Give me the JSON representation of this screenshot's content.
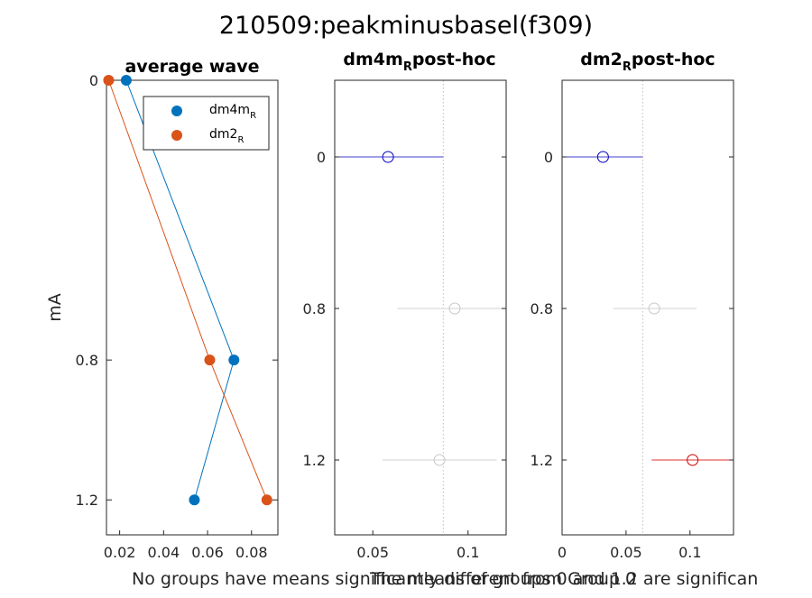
{
  "figure": {
    "title": "210509:peakminusbasel(f309)",
    "footer_left": "No groups have means significantly different from Group 0",
    "footer_right": "The means of groups 0 and 1.2 are significan"
  },
  "chart_data": [
    {
      "type": "line",
      "title": "average wave",
      "ylabel": "mA",
      "xlabel": "",
      "orientation": "horizontal-values",
      "y_categories": [
        0,
        0.8,
        1.2
      ],
      "y_tick_labels": [
        "0",
        "0.8",
        "1.2"
      ],
      "x_tick_values": [
        0.02,
        0.04,
        0.06,
        0.08
      ],
      "x_tick_labels": [
        "0.02",
        "0.04",
        "0.06",
        "0.08"
      ],
      "xlim": [
        0.014,
        0.092
      ],
      "ylim": [
        0,
        1.3
      ],
      "grid": false,
      "legend_placement": "top-right",
      "series": [
        {
          "name": "dm4m",
          "subscript": "R",
          "color": "#0072BD",
          "x": [
            0.023,
            0.072,
            0.054
          ],
          "y": [
            0,
            0.8,
            1.2
          ]
        },
        {
          "name": "dm2",
          "subscript": "R",
          "color": "#D95319",
          "x": [
            0.015,
            0.061,
            0.087
          ],
          "y": [
            0,
            0.8,
            1.2
          ]
        }
      ]
    },
    {
      "type": "scatter",
      "title_main": "dm4m",
      "title_sub": "R",
      "title_suffix": "post-hoc",
      "y_tick_labels": [
        "0",
        "0.8",
        "1.2"
      ],
      "x_tick_values": [
        0.05,
        0.1
      ],
      "x_tick_labels": [
        "0.05",
        "0.1"
      ],
      "xlim": [
        0.03,
        0.12
      ],
      "ylim": [
        0,
        3
      ],
      "reference_line": 0.087,
      "points": [
        {
          "group": "0",
          "mean": 0.058,
          "lo": 0.03,
          "hi": 0.087,
          "color": "#0000C0",
          "line_color": "#4040D0"
        },
        {
          "group": "0.8",
          "mean": 0.093,
          "lo": 0.063,
          "hi": 0.12,
          "color": "#C8C8C8",
          "line_color": "#D0D0D0"
        },
        {
          "group": "1.2",
          "mean": 0.085,
          "lo": 0.055,
          "hi": 0.115,
          "color": "#C8C8C8",
          "line_color": "#D0D0D0"
        }
      ]
    },
    {
      "type": "scatter",
      "title_main": "dm2",
      "title_sub": "R",
      "title_suffix": "post-hoc",
      "y_tick_labels": [
        "0",
        "0.8",
        "1.2"
      ],
      "x_tick_values": [
        0,
        0.05,
        0.1
      ],
      "x_tick_labels": [
        "0",
        "0.05",
        "0.1"
      ],
      "xlim": [
        0,
        0.134
      ],
      "ylim": [
        0,
        3
      ],
      "reference_line": 0.063,
      "points": [
        {
          "group": "0",
          "mean": 0.032,
          "lo": 0,
          "hi": 0.063,
          "color": "#0000C0",
          "line_color": "#4040D0"
        },
        {
          "group": "0.8",
          "mean": 0.072,
          "lo": 0.04,
          "hi": 0.105,
          "color": "#C8C8C8",
          "line_color": "#D0D0D0"
        },
        {
          "group": "1.2",
          "mean": 0.102,
          "lo": 0.07,
          "hi": 0.134,
          "color": "#D00000",
          "line_color": "#E03030"
        }
      ]
    }
  ]
}
